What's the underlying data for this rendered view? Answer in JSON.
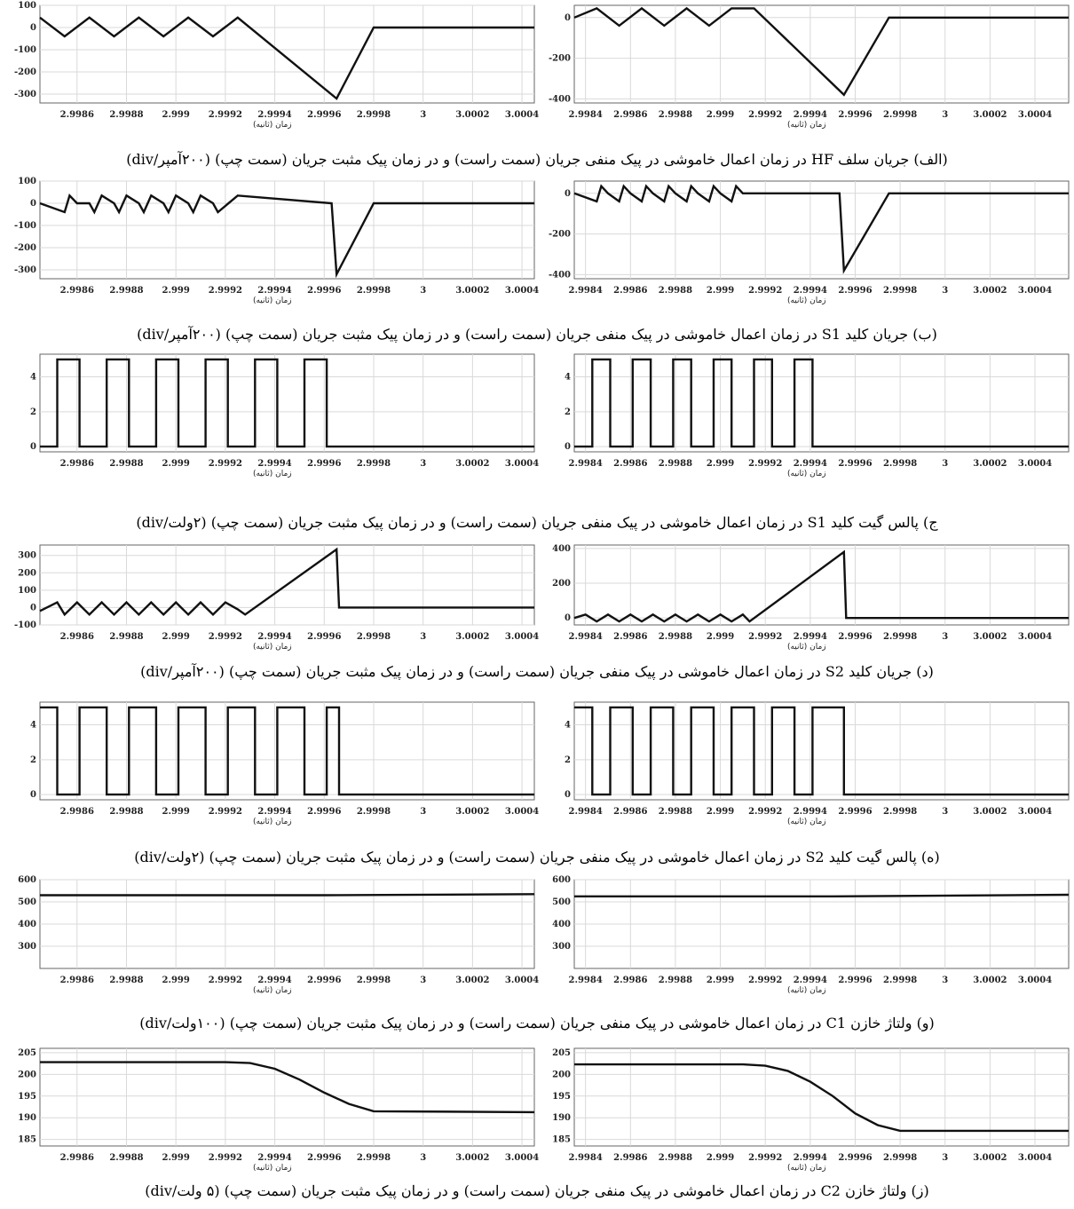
{
  "axis_xlabel": "زمان (ثانیه)",
  "captions": [
    "(الف) جریان سلف HF در زمان اعمال خاموشی در پیک منفی جریان (سمت راست) و در زمان پیک مثبت جریان (سمت چپ) (۲۰۰آمپر/div)",
    "(ب) جریان کلید S1 در زمان اعمال خاموشی در پیک منفی جریان (سمت راست) و در زمان پیک مثبت جریان (سمت چپ) (۲۰۰آمپر/div)",
    "ج) پالس گیت کلید S1 در زمان اعمال خاموشی در پیک منفی جریان (سمت راست) و در زمان پیک مثبت جریان (سمت چپ) (۲ولت/div)",
    "(د) جریان کلید S2 در زمان اعمال خاموشی در پیک منفی جریان (سمت راست) و در زمان پیک مثبت جریان (سمت چپ) (۲۰۰آمپر/div)",
    "(ه) پالس گیت کلید S2 در زمان اعمال خاموشی در پیک منفی جریان (سمت راست) و در زمان پیک مثبت جریان (سمت چپ) (۲ولت/div)",
    "(و) ولتاژ خازن C1 در زمان اعمال خاموشی در پیک منفی جریان (سمت راست) و در زمان پیک مثبت جریان (سمت چپ) (۱۰۰ولت/div)",
    "(ز) ولتاژ خازن C2 در زمان اعمال خاموشی در پیک منفی جریان (سمت راست) و در زمان پیک مثبت جریان (سمت چپ) (۵ ولت/div)"
  ],
  "chart_data": [
    {
      "id": "a-left",
      "type": "line",
      "row": "الف",
      "side": "left",
      "xlim": [
        2.99845,
        3.00045
      ],
      "ylim": [
        -340,
        100
      ],
      "yticks": [
        100,
        0,
        -100,
        -200,
        -300
      ],
      "xticks": [
        2.9986,
        2.9988,
        2.999,
        2.9992,
        2.9994,
        2.9996,
        2.9998,
        3,
        3.0002,
        3.0004
      ],
      "x": [
        2.99845,
        2.99855,
        2.99865,
        2.99875,
        2.99885,
        2.99895,
        2.99905,
        2.99915,
        2.99925,
        2.99965,
        2.9998,
        3.00045
      ],
      "y": [
        45,
        -40,
        45,
        -40,
        45,
        -40,
        45,
        -40,
        45,
        -320,
        0,
        0
      ]
    },
    {
      "id": "a-right",
      "type": "line",
      "row": "الف",
      "side": "right",
      "xlim": [
        2.99835,
        3.00055
      ],
      "ylim": [
        -420,
        60
      ],
      "yticks": [
        0,
        -200,
        -400
      ],
      "xticks": [
        2.9984,
        2.9986,
        2.9988,
        2.999,
        2.9992,
        2.9994,
        2.9996,
        2.9998,
        3,
        3.0002,
        3.0004
      ],
      "x": [
        2.99835,
        2.99845,
        2.99855,
        2.99865,
        2.99875,
        2.99885,
        2.99895,
        2.99905,
        2.99915,
        2.99955,
        2.99975,
        3.00055
      ],
      "y": [
        0,
        45,
        -40,
        45,
        -40,
        45,
        -40,
        45,
        45,
        -380,
        0,
        0
      ]
    },
    {
      "id": "b-left",
      "type": "line",
      "row": "ب",
      "side": "left",
      "xlim": [
        2.99845,
        3.00045
      ],
      "ylim": [
        -340,
        100
      ],
      "yticks": [
        100,
        0,
        -100,
        -200,
        -300
      ],
      "xticks": [
        2.9986,
        2.9988,
        2.999,
        2.9992,
        2.9994,
        2.9996,
        2.9998,
        3,
        3.0002,
        3.0004
      ],
      "x": [
        2.99845,
        2.99855,
        2.99857,
        2.9986,
        2.99865,
        2.99867,
        2.9987,
        2.99875,
        2.99877,
        2.9988,
        2.99885,
        2.99887,
        2.9989,
        2.99895,
        2.99897,
        2.999,
        2.99905,
        2.99907,
        2.9991,
        2.99915,
        2.99917,
        2.99925,
        2.99963,
        2.99965,
        2.9998,
        3.00045
      ],
      "y": [
        0,
        -40,
        35,
        0,
        0,
        -40,
        35,
        0,
        -40,
        35,
        0,
        -40,
        35,
        0,
        -40,
        35,
        0,
        -40,
        35,
        0,
        -40,
        35,
        0,
        -320,
        0,
        0
      ]
    },
    {
      "id": "b-right",
      "type": "line",
      "row": "ب",
      "side": "right",
      "xlim": [
        2.99835,
        3.00055
      ],
      "ylim": [
        -420,
        60
      ],
      "yticks": [
        0,
        -200,
        -400
      ],
      "xticks": [
        2.9984,
        2.9986,
        2.9988,
        2.999,
        2.9992,
        2.9994,
        2.9996,
        2.9998,
        3,
        3.0002,
        3.0004
      ],
      "x": [
        2.99835,
        2.99845,
        2.99847,
        2.9985,
        2.99855,
        2.99857,
        2.9986,
        2.99865,
        2.99867,
        2.9987,
        2.99875,
        2.99877,
        2.9988,
        2.99885,
        2.99887,
        2.9989,
        2.99895,
        2.99897,
        2.999,
        2.99905,
        2.99907,
        2.9991,
        2.99953,
        2.99955,
        2.99975,
        3.00055
      ],
      "y": [
        0,
        -40,
        35,
        0,
        -40,
        35,
        0,
        -40,
        35,
        0,
        -40,
        35,
        0,
        -40,
        35,
        0,
        -40,
        35,
        0,
        -40,
        35,
        0,
        0,
        -380,
        0,
        0
      ]
    },
    {
      "id": "c-left",
      "type": "line",
      "row": "ج",
      "side": "left",
      "xlim": [
        2.99845,
        3.00045
      ],
      "ylim": [
        -0.3,
        5.3
      ],
      "yticks": [
        4,
        2,
        0
      ],
      "xticks": [
        2.9986,
        2.9988,
        2.999,
        2.9992,
        2.9994,
        2.9996,
        2.9998,
        3,
        3.0002,
        3.0004
      ],
      "pulses": {
        "high": 5,
        "low": 0,
        "starts": [
          2.99852,
          2.99872,
          2.99892,
          2.99912,
          2.99932,
          2.99952
        ],
        "width": 9e-05,
        "end": 3.00045
      }
    },
    {
      "id": "c-right",
      "type": "line",
      "row": "ج",
      "side": "right",
      "xlim": [
        2.99835,
        3.00055
      ],
      "ylim": [
        -0.3,
        5.3
      ],
      "yticks": [
        4,
        2,
        0
      ],
      "xticks": [
        2.9984,
        2.9986,
        2.9988,
        2.999,
        2.9992,
        2.9994,
        2.9996,
        2.9998,
        3,
        3.0002,
        3.0004
      ],
      "pulses": {
        "high": 5,
        "low": 0,
        "starts": [
          2.99843,
          2.99861,
          2.99879,
          2.99897,
          2.99915,
          2.99933
        ],
        "width": 8e-05,
        "end": 3.00055
      }
    },
    {
      "id": "d-left",
      "type": "line",
      "row": "د",
      "side": "left",
      "xlim": [
        2.99845,
        3.00045
      ],
      "ylim": [
        -100,
        360
      ],
      "yticks": [
        300,
        200,
        100,
        0,
        -100
      ],
      "xticks": [
        2.9986,
        2.9988,
        2.999,
        2.9992,
        2.9994,
        2.9996,
        2.9998,
        3,
        3.0002,
        3.0004
      ],
      "x": [
        2.99845,
        2.99852,
        2.99855,
        2.9986,
        2.99865,
        2.9987,
        2.99875,
        2.9988,
        2.99885,
        2.9989,
        2.99895,
        2.999,
        2.99905,
        2.9991,
        2.99915,
        2.9992,
        2.99925,
        2.99928,
        2.99965,
        2.99966,
        3.00045
      ],
      "y": [
        -20,
        30,
        -40,
        30,
        -40,
        30,
        -40,
        30,
        -40,
        30,
        -40,
        30,
        -40,
        30,
        -40,
        30,
        -10,
        -40,
        335,
        0,
        0
      ]
    },
    {
      "id": "d-right",
      "type": "line",
      "row": "د",
      "side": "right",
      "xlim": [
        2.99835,
        3.00055
      ],
      "ylim": [
        -40,
        420
      ],
      "yticks": [
        400,
        200,
        0
      ],
      "xticks": [
        2.9984,
        2.9986,
        2.9988,
        2.999,
        2.9992,
        2.9994,
        2.9996,
        2.9998,
        3,
        3.0002,
        3.0004
      ],
      "x": [
        2.99835,
        2.9984,
        2.99845,
        2.9985,
        2.99855,
        2.9986,
        2.99865,
        2.9987,
        2.99875,
        2.9988,
        2.99885,
        2.9989,
        2.99895,
        2.999,
        2.99905,
        2.9991,
        2.99913,
        2.99955,
        2.99956,
        3.00055
      ],
      "y": [
        0,
        20,
        -20,
        20,
        -20,
        20,
        -20,
        20,
        -20,
        20,
        -20,
        20,
        -20,
        20,
        -20,
        20,
        -20,
        380,
        0,
        0
      ]
    },
    {
      "id": "e-left",
      "type": "line",
      "row": "ه",
      "side": "left",
      "xlim": [
        2.99845,
        3.00045
      ],
      "ylim": [
        -0.3,
        5.3
      ],
      "yticks": [
        4,
        2,
        0
      ],
      "xticks": [
        2.9986,
        2.9988,
        2.999,
        2.9992,
        2.9994,
        2.9996,
        2.9998,
        3,
        3.0002,
        3.0004
      ],
      "gate": {
        "high": 5,
        "low": 0,
        "dips": [
          2.99852,
          2.99872,
          2.99892,
          2.99912,
          2.99932,
          2.99952
        ],
        "dip_width": 9e-05,
        "off": 2.99966,
        "end": 3.00045
      }
    },
    {
      "id": "e-right",
      "type": "line",
      "row": "ه",
      "side": "right",
      "xlim": [
        2.99835,
        3.00055
      ],
      "ylim": [
        -0.3,
        5.3
      ],
      "yticks": [
        4,
        2,
        0
      ],
      "xticks": [
        2.9984,
        2.9986,
        2.9988,
        2.999,
        2.9992,
        2.9994,
        2.9996,
        2.9998,
        3,
        3.0002,
        3.0004
      ],
      "gate": {
        "high": 5,
        "low": 0,
        "dips": [
          2.99843,
          2.99861,
          2.99879,
          2.99897,
          2.99915,
          2.99933
        ],
        "dip_width": 8e-05,
        "off": 2.99955,
        "end": 3.00055
      }
    },
    {
      "id": "f-left",
      "type": "line",
      "row": "و",
      "side": "left",
      "xlim": [
        2.99845,
        3.00045
      ],
      "ylim": [
        200,
        600
      ],
      "yticks": [
        600,
        500,
        400,
        300
      ],
      "xticks": [
        2.9986,
        2.9988,
        2.999,
        2.9992,
        2.9994,
        2.9996,
        2.9998,
        3,
        3.0002,
        3.0004
      ],
      "x": [
        2.99845,
        2.9996,
        3.00045
      ],
      "y": [
        530,
        530,
        535
      ]
    },
    {
      "id": "f-right",
      "type": "line",
      "row": "و",
      "side": "right",
      "xlim": [
        2.99835,
        3.00055
      ],
      "ylim": [
        200,
        600
      ],
      "yticks": [
        600,
        500,
        400,
        300
      ],
      "xticks": [
        2.9984,
        2.9986,
        2.9988,
        2.999,
        2.9992,
        2.9994,
        2.9996,
        2.9998,
        3,
        3.0002,
        3.0004
      ],
      "x": [
        2.99835,
        2.9995,
        3.00055
      ],
      "y": [
        525,
        525,
        532
      ]
    },
    {
      "id": "g-left",
      "type": "line",
      "row": "ز",
      "side": "left",
      "xlim": [
        2.99845,
        3.00045
      ],
      "ylim": [
        183.5,
        206
      ],
      "yticks": [
        205,
        200,
        195,
        190,
        185
      ],
      "xticks": [
        2.9986,
        2.9988,
        2.999,
        2.9992,
        2.9994,
        2.9996,
        2.9998,
        3,
        3.0002,
        3.0004
      ],
      "x": [
        2.99845,
        2.9992,
        2.9993,
        2.9994,
        2.9995,
        2.9996,
        2.9997,
        2.9998,
        3.00045
      ],
      "y": [
        202.8,
        202.8,
        202.6,
        201.3,
        198.8,
        195.8,
        193.2,
        191.5,
        191.3
      ]
    },
    {
      "id": "g-right",
      "type": "line",
      "row": "ز",
      "side": "right",
      "xlim": [
        2.99835,
        3.00055
      ],
      "ylim": [
        183.5,
        206
      ],
      "yticks": [
        205,
        200,
        195,
        190,
        185
      ],
      "xticks": [
        2.9984,
        2.9986,
        2.9988,
        2.999,
        2.9992,
        2.9994,
        2.9996,
        2.9998,
        3,
        3.0002,
        3.0004
      ],
      "x": [
        2.99835,
        2.9991,
        2.9992,
        2.9993,
        2.9994,
        2.9995,
        2.9996,
        2.9997,
        2.9998,
        3.00055
      ],
      "y": [
        202.3,
        202.3,
        202.0,
        200.8,
        198.3,
        195.0,
        191.0,
        188.3,
        187.0,
        187.0
      ]
    }
  ]
}
